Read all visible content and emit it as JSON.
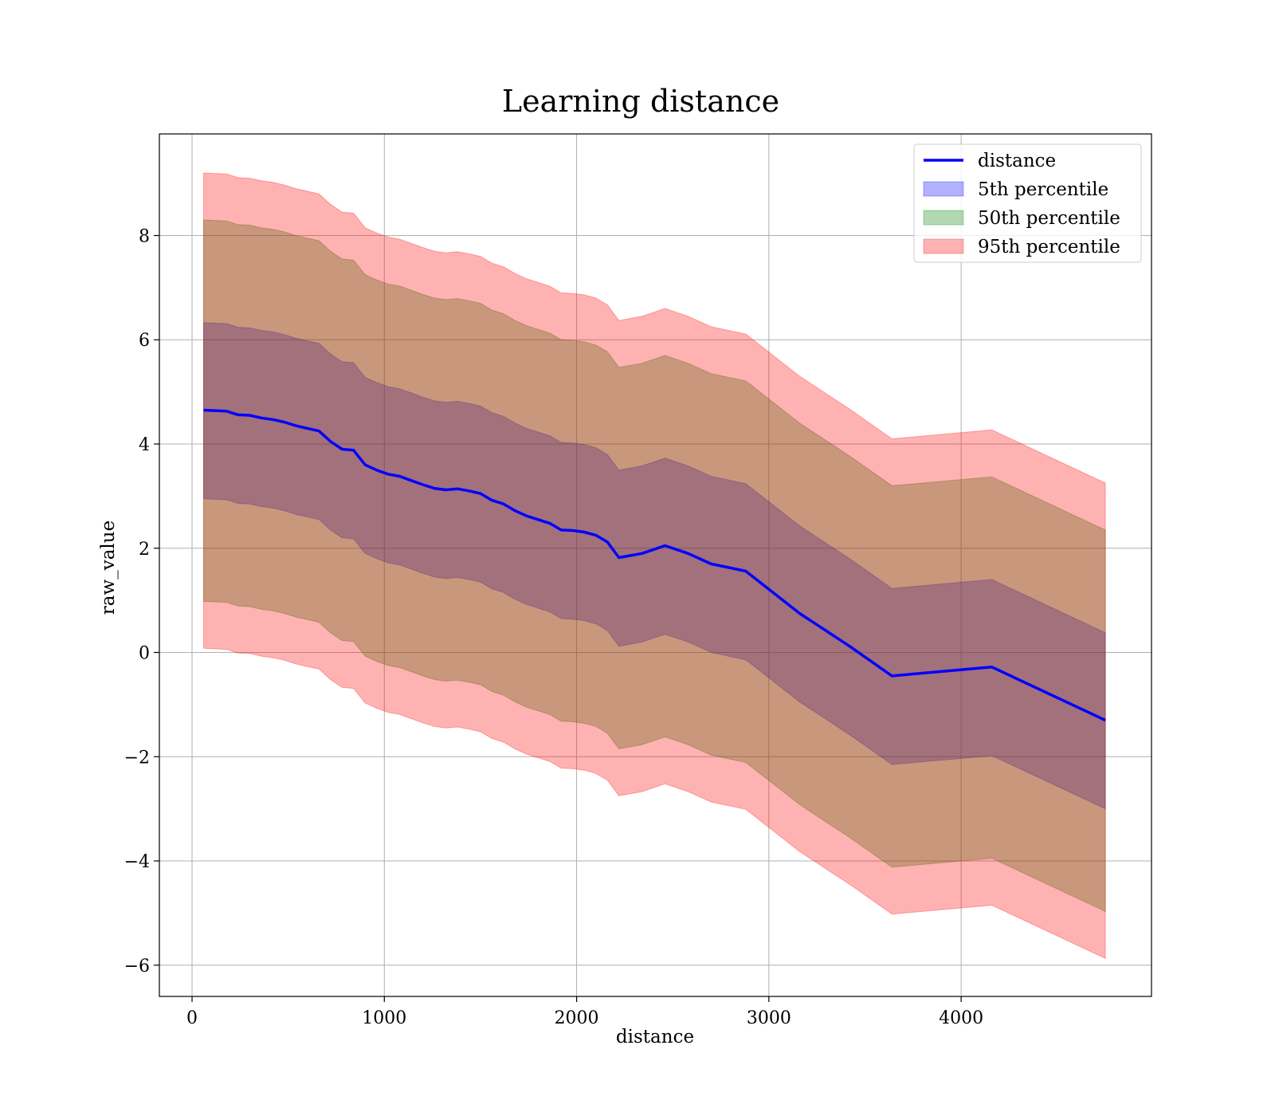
{
  "chart_data": {
    "type": "area",
    "title": "Learning distance",
    "xlabel": "distance",
    "ylabel": "raw_value",
    "xlim": [
      -170,
      4990
    ],
    "ylim": [
      -6.6,
      9.95
    ],
    "xticks": [
      0,
      1000,
      2000,
      3000,
      4000
    ],
    "yticks": [
      -6,
      -4,
      -2,
      0,
      2,
      4,
      6,
      8
    ],
    "xtick_labels": [
      "0",
      "1000",
      "2000",
      "3000",
      "4000"
    ],
    "ytick_labels": [
      "−6",
      "−4",
      "−2",
      "0",
      "2",
      "4",
      "6",
      "8"
    ],
    "grid": true,
    "legend_position": "top-right",
    "legend": [
      "distance",
      "5th percentile",
      "50th percentile",
      "95th percentile"
    ],
    "x": [
      60,
      180,
      240,
      300,
      360,
      420,
      480,
      540,
      600,
      660,
      720,
      780,
      840,
      900,
      960,
      1020,
      1080,
      1140,
      1200,
      1260,
      1320,
      1380,
      1440,
      1500,
      1560,
      1620,
      1680,
      1740,
      1800,
      1860,
      1920,
      1980,
      2040,
      2100,
      2160,
      2220,
      2340,
      2460,
      2580,
      2700,
      2880,
      3160,
      3420,
      3640,
      4160,
      4750
    ],
    "series": [
      {
        "name": "distance",
        "kind": "line",
        "color": "#0000ff",
        "values": [
          4.65,
          4.63,
          4.56,
          4.55,
          4.5,
          4.47,
          4.42,
          4.35,
          4.3,
          4.25,
          4.05,
          3.9,
          3.88,
          3.6,
          3.5,
          3.42,
          3.38,
          3.3,
          3.22,
          3.15,
          3.12,
          3.14,
          3.1,
          3.05,
          2.92,
          2.85,
          2.72,
          2.62,
          2.55,
          2.48,
          2.35,
          2.34,
          2.31,
          2.25,
          2.12,
          1.82,
          1.9,
          2.05,
          1.9,
          1.7,
          1.56,
          0.75,
          0.12,
          -0.45,
          -0.28,
          -1.3
        ]
      },
      {
        "name": "5th percentile",
        "kind": "band",
        "color": "#0000ff",
        "alpha": 0.3,
        "lower": [
          2.95,
          2.93,
          2.86,
          2.85,
          2.8,
          2.77,
          2.72,
          2.65,
          2.6,
          2.55,
          2.35,
          2.2,
          2.18,
          1.9,
          1.8,
          1.72,
          1.68,
          1.6,
          1.52,
          1.45,
          1.42,
          1.44,
          1.4,
          1.35,
          1.22,
          1.15,
          1.02,
          0.92,
          0.85,
          0.78,
          0.65,
          0.64,
          0.61,
          0.55,
          0.42,
          0.12,
          0.2,
          0.35,
          0.2,
          0.0,
          -0.14,
          -0.95,
          -1.58,
          -2.15,
          -1.98,
          -3.0
        ],
        "upper": [
          6.33,
          6.31,
          6.24,
          6.23,
          6.18,
          6.15,
          6.1,
          6.03,
          5.98,
          5.93,
          5.73,
          5.58,
          5.56,
          5.28,
          5.18,
          5.1,
          5.06,
          4.98,
          4.9,
          4.83,
          4.8,
          4.82,
          4.78,
          4.73,
          4.6,
          4.53,
          4.4,
          4.3,
          4.23,
          4.16,
          4.03,
          4.02,
          3.99,
          3.93,
          3.8,
          3.5,
          3.58,
          3.73,
          3.58,
          3.38,
          3.24,
          2.43,
          1.8,
          1.23,
          1.4,
          0.38
        ]
      },
      {
        "name": "50th percentile",
        "kind": "band",
        "color": "#008000",
        "alpha": 0.3,
        "lower": [
          0.98,
          0.96,
          0.89,
          0.88,
          0.83,
          0.8,
          0.75,
          0.68,
          0.63,
          0.58,
          0.38,
          0.23,
          0.21,
          -0.07,
          -0.17,
          -0.25,
          -0.29,
          -0.37,
          -0.45,
          -0.52,
          -0.55,
          -0.53,
          -0.57,
          -0.62,
          -0.75,
          -0.82,
          -0.95,
          -1.05,
          -1.12,
          -1.19,
          -1.32,
          -1.33,
          -1.36,
          -1.42,
          -1.55,
          -1.85,
          -1.77,
          -1.62,
          -1.77,
          -1.97,
          -2.11,
          -2.92,
          -3.55,
          -4.12,
          -3.95,
          -4.97
        ],
        "upper": [
          8.3,
          8.28,
          8.21,
          8.2,
          8.15,
          8.12,
          8.07,
          8.0,
          7.95,
          7.9,
          7.7,
          7.55,
          7.53,
          7.25,
          7.15,
          7.07,
          7.03,
          6.95,
          6.87,
          6.8,
          6.77,
          6.79,
          6.75,
          6.7,
          6.57,
          6.5,
          6.37,
          6.27,
          6.2,
          6.13,
          6.0,
          5.99,
          5.96,
          5.9,
          5.77,
          5.47,
          5.55,
          5.7,
          5.55,
          5.35,
          5.21,
          4.4,
          3.77,
          3.2,
          3.37,
          2.35
        ]
      },
      {
        "name": "95th percentile",
        "kind": "band",
        "color": "#ff0000",
        "alpha": 0.3,
        "lower": [
          0.08,
          0.06,
          -0.01,
          -0.02,
          -0.07,
          -0.1,
          -0.15,
          -0.22,
          -0.27,
          -0.32,
          -0.52,
          -0.67,
          -0.69,
          -0.97,
          -1.07,
          -1.15,
          -1.19,
          -1.27,
          -1.35,
          -1.42,
          -1.45,
          -1.43,
          -1.47,
          -1.52,
          -1.65,
          -1.72,
          -1.85,
          -1.95,
          -2.02,
          -2.09,
          -2.22,
          -2.23,
          -2.26,
          -2.32,
          -2.45,
          -2.75,
          -2.67,
          -2.52,
          -2.67,
          -2.87,
          -3.01,
          -3.82,
          -4.45,
          -5.02,
          -4.85,
          -5.87
        ],
        "upper": [
          9.2,
          9.18,
          9.11,
          9.1,
          9.05,
          9.02,
          8.97,
          8.9,
          8.85,
          8.8,
          8.6,
          8.45,
          8.43,
          8.15,
          8.05,
          7.97,
          7.93,
          7.85,
          7.77,
          7.7,
          7.67,
          7.69,
          7.65,
          7.6,
          7.47,
          7.4,
          7.27,
          7.17,
          7.1,
          7.03,
          6.9,
          6.89,
          6.86,
          6.8,
          6.67,
          6.37,
          6.45,
          6.6,
          6.45,
          6.25,
          6.11,
          5.3,
          4.67,
          4.1,
          4.27,
          3.25
        ]
      }
    ]
  }
}
